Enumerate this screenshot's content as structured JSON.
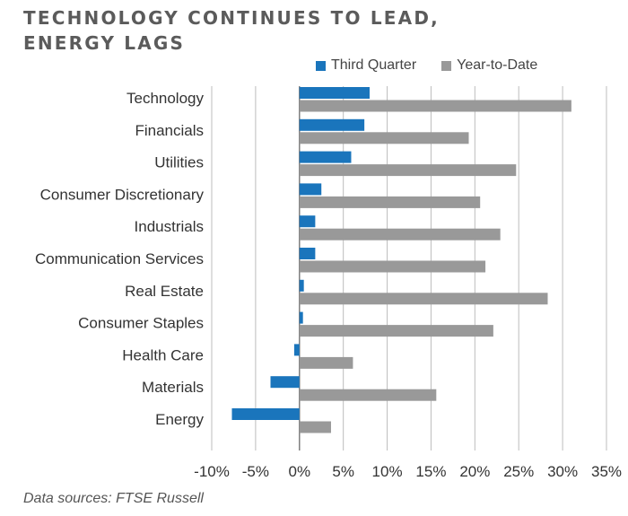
{
  "title_lines": [
    "TECHNOLOGY CONTINUES TO LEAD,",
    "ENERGY LAGS"
  ],
  "source": "Data sources: FTSE Russell",
  "colors": {
    "series1": "#1a75bc",
    "series2": "#999999",
    "grid": "#bdbdbd",
    "axis": "#7f7f7f"
  },
  "chart_data": {
    "type": "bar",
    "orientation": "horizontal",
    "categories": [
      "Technology",
      "Financials",
      "Utilities",
      "Consumer Discretionary",
      "Industrials",
      "Communication Services",
      "Real Estate",
      "Consumer Staples",
      "Health Care",
      "Materials",
      "Energy"
    ],
    "series": [
      {
        "name": "Third Quarter",
        "values": [
          8.0,
          7.4,
          5.9,
          2.5,
          1.8,
          1.8,
          0.5,
          0.4,
          -0.6,
          -3.3,
          -7.7
        ]
      },
      {
        "name": "Year-to-Date",
        "values": [
          31.0,
          19.3,
          24.7,
          20.6,
          22.9,
          21.2,
          28.3,
          22.1,
          6.1,
          15.6,
          3.6
        ]
      }
    ],
    "xlim": [
      -10,
      35
    ],
    "xticks": [
      "-10%",
      "-5%",
      "0%",
      "5%",
      "10%",
      "15%",
      "20%",
      "25%",
      "30%",
      "35%"
    ],
    "legend_position": "top",
    "grid": true
  }
}
